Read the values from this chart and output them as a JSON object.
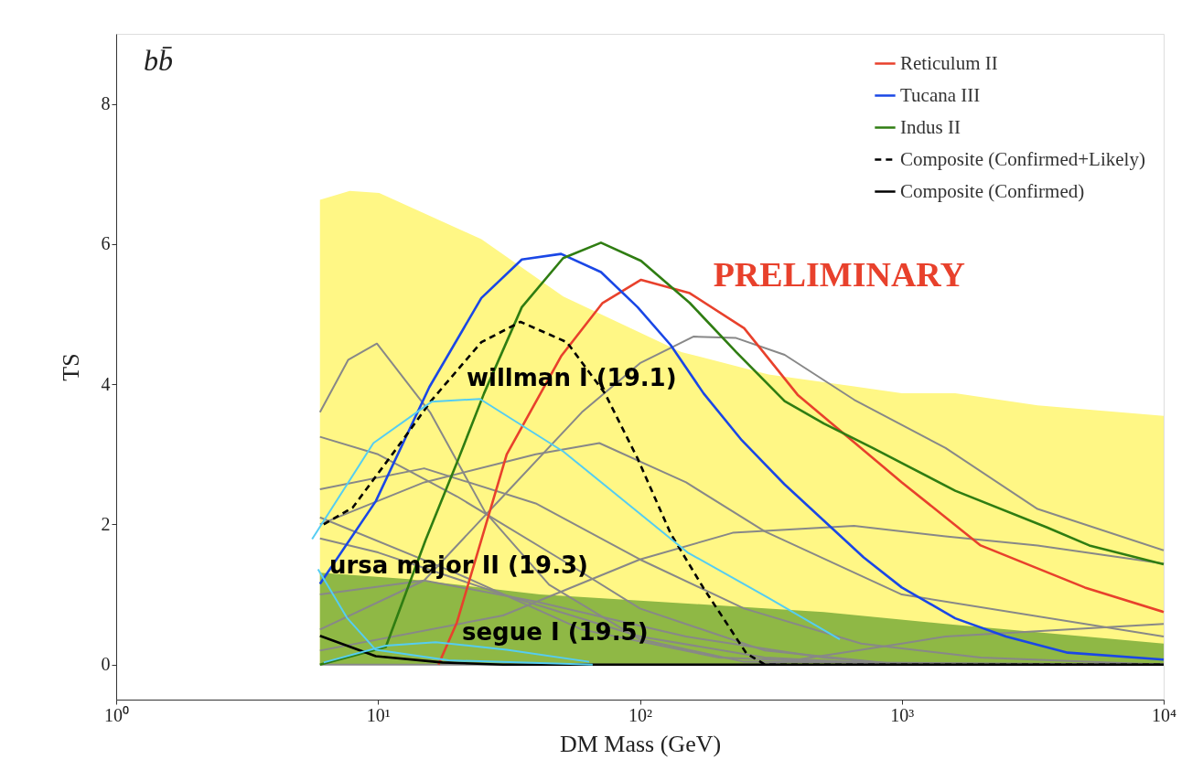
{
  "chart_data": {
    "type": "line",
    "xlabel": "DM Mass (GeV)",
    "ylabel": "TS",
    "log": "x",
    "xlim": [
      1,
      10000
    ],
    "ylim": [
      -0.5,
      9
    ],
    "xticks": [
      {
        "value": 1,
        "label": "10⁰"
      },
      {
        "value": 10,
        "label": "10¹"
      },
      {
        "value": 100,
        "label": "10²"
      },
      {
        "value": 1000,
        "label": "10³"
      },
      {
        "value": 10000,
        "label": "10⁴"
      }
    ],
    "yticks": [
      0,
      2,
      4,
      6,
      8
    ],
    "grid": false,
    "legend": "top right",
    "marker": "none",
    "annotations": [
      "bb̄",
      "PRELIMINARY",
      "willman I (19.1)",
      "ursa major II (19.3)",
      "segue I (19.5)"
    ],
    "series": [
      {
        "type": "area",
        "color": "#fff785",
        "x": [
          6,
          7.8,
          10.1,
          24.8,
          51,
          144,
          310,
          657,
          1000,
          1600,
          3300,
          10000
        ],
        "values": [
          6.63,
          6.76,
          6.73,
          6.07,
          5.25,
          4.46,
          4.14,
          3.97,
          3.87,
          3.87,
          3.7,
          3.55
        ]
      },
      {
        "type": "area",
        "color": "#8fb845",
        "x": [
          6,
          13.1,
          41.5,
          310,
          504,
          1470,
          10000
        ],
        "values": [
          1.31,
          1.22,
          1.0,
          0.8,
          0.75,
          0.58,
          0.3
        ]
      },
      {
        "color": "#888888",
        "x": [
          6,
          7.7,
          9.9,
          15.8,
          25.6,
          45,
          100,
          250,
          10000
        ],
        "values": [
          3.6,
          4.35,
          4.58,
          3.6,
          2.18,
          1.14,
          0.36,
          0.04,
          0
        ]
      },
      {
        "color": "#888888",
        "x": [
          6,
          15,
          30,
          60,
          100,
          160,
          233,
          357,
          657,
          1470,
          3300,
          10000
        ],
        "values": [
          0.5,
          1.2,
          2.4,
          3.6,
          4.3,
          4.68,
          4.66,
          4.42,
          3.78,
          3.09,
          2.22,
          1.63
        ]
      },
      {
        "color": "#888888",
        "x": [
          6,
          30,
          100,
          226,
          657,
          1470,
          3300,
          10000
        ],
        "values": [
          0.2,
          0.7,
          1.5,
          1.88,
          1.98,
          1.83,
          1.7,
          1.44
        ]
      },
      {
        "color": "#888888",
        "x": [
          6,
          300,
          1000,
          1470,
          10000
        ],
        "values": [
          0,
          0,
          0.3,
          0.4,
          0.58
        ]
      },
      {
        "color": "#888888",
        "x": [
          6,
          10,
          20,
          50,
          100,
          300,
          1000,
          10000
        ],
        "values": [
          3.25,
          3.0,
          2.4,
          1.5,
          0.8,
          0.2,
          0,
          0
        ]
      },
      {
        "color": "#888888",
        "x": [
          6,
          15,
          40,
          70,
          150,
          300,
          1000,
          10000
        ],
        "values": [
          2.0,
          2.6,
          3.0,
          3.16,
          2.6,
          1.9,
          1.0,
          0.4
        ]
      },
      {
        "color": "#888888",
        "x": [
          6,
          10,
          30,
          100,
          300,
          1000,
          10000
        ],
        "values": [
          1.8,
          1.6,
          1.0,
          0.4,
          0.1,
          0,
          0
        ]
      },
      {
        "color": "#888888",
        "x": [
          6,
          20,
          60,
          200,
          1000,
          10000
        ],
        "values": [
          2.1,
          1.3,
          0.5,
          0.1,
          0,
          0
        ]
      },
      {
        "color": "#888888",
        "x": [
          6,
          15,
          40,
          150,
          500,
          1000,
          10000
        ],
        "values": [
          1.0,
          1.2,
          0.9,
          0.4,
          0.1,
          0,
          0
        ]
      },
      {
        "color": "#888888",
        "x": [
          6,
          15,
          40,
          100,
          250,
          700,
          2000,
          10000
        ],
        "values": [
          2.5,
          2.8,
          2.3,
          1.5,
          0.8,
          0.3,
          0.1,
          0
        ]
      },
      {
        "name": "Reticulum II",
        "color": "#e8412c",
        "x": [
          17,
          20,
          31,
          50,
          72,
          101,
          155,
          250,
          400,
          1000,
          2000,
          5000,
          10000
        ],
        "values": [
          0,
          0.6,
          3.0,
          4.4,
          5.16,
          5.49,
          5.3,
          4.8,
          3.85,
          2.6,
          1.7,
          1.1,
          0.75
        ]
      },
      {
        "name": "Tucana III",
        "color": "#1a47e6",
        "x": [
          6,
          9.8,
          15.7,
          24.8,
          35.4,
          50,
          71,
          98,
          131,
          175,
          245,
          357,
          715,
          1000,
          1600,
          2500,
          4300,
          10000
        ],
        "values": [
          1.15,
          2.33,
          3.96,
          5.23,
          5.78,
          5.86,
          5.6,
          5.1,
          4.56,
          3.87,
          3.2,
          2.57,
          1.53,
          1.1,
          0.66,
          0.4,
          0.17,
          0.07
        ]
      },
      {
        "name": "Indus II",
        "color": "#2f7d12",
        "x": [
          6,
          10.7,
          15.2,
          20.3,
          25.4,
          35.4,
          50.9,
          71,
          101,
          155,
          233,
          357,
          504,
          775,
          1600,
          3570,
          5200,
          10000
        ],
        "values": [
          0,
          0.25,
          1.78,
          2.94,
          3.87,
          5.1,
          5.8,
          6.02,
          5.76,
          5.16,
          4.46,
          3.76,
          3.44,
          3.09,
          2.48,
          1.96,
          1.7,
          1.43
        ]
      },
      {
        "name": "Composite (Confirmed+Likely)",
        "color": "#000000",
        "line_style": "dashed",
        "x": [
          6.2,
          8,
          11.7,
          16,
          24.8,
          35,
          52.6,
          73.5,
          98,
          131,
          175,
          255,
          300,
          10000
        ],
        "values": [
          2.0,
          2.24,
          3.07,
          3.77,
          4.6,
          4.89,
          4.6,
          3.87,
          2.94,
          1.87,
          1.09,
          0.16,
          0,
          0
        ]
      },
      {
        "name": "Composite (Confirmed)",
        "color": "#000000",
        "line_style": "solid",
        "x": [
          6,
          9.8,
          17.6,
          30,
          10000
        ],
        "values": [
          0.41,
          0.12,
          0.03,
          0,
          0
        ]
      },
      {
        "color": "#55cdf2",
        "x": [
          5.6,
          9.6,
          16,
          24.5,
          51,
          152,
          310,
          580
        ],
        "values": [
          1.79,
          3.16,
          3.75,
          3.79,
          3.04,
          1.6,
          0.95,
          0.36
        ]
      },
      {
        "color": "#55cdf2",
        "x": [
          5.9,
          7.6,
          9.8,
          18.6,
          66
        ],
        "values": [
          1.36,
          0.67,
          0.21,
          0.06,
          0.0
        ]
      },
      {
        "color": "#55cdf2",
        "x": [
          6.2,
          10.7,
          16.6,
          31,
          64
        ],
        "values": [
          0.03,
          0.27,
          0.32,
          0.21,
          0.04
        ]
      }
    ]
  }
}
